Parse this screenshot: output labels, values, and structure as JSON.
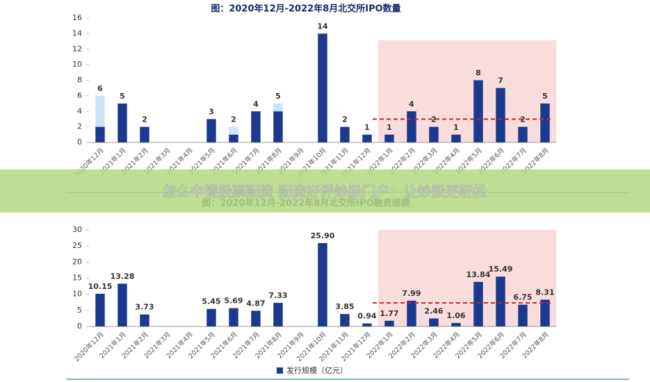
{
  "overlay": {
    "text": "怎么申请股票配资 配资好评炒股门户：让炒股更轻松"
  },
  "chart_data": [
    {
      "type": "bar",
      "title": "图：2020年12月-2022年8月北交所IPO数量",
      "categories": [
        "2020年12月",
        "2021年1月",
        "2021年2月",
        "2021年3月",
        "2021年4月",
        "2021年5月",
        "2021年6月",
        "2021年7月",
        "2021年8月",
        "2021年9月",
        "2021年10月",
        "2021年11月",
        "2021年12月",
        "2022年1月",
        "2022年2月",
        "2022年3月",
        "2022年4月",
        "2022年5月",
        "2022年6月",
        "2022年7月",
        "2022年8月"
      ],
      "series": [
        {
          "color": "#1a3a8f",
          "values": [
            2,
            5,
            2,
            null,
            null,
            3,
            1,
            4,
            4,
            null,
            14,
            2,
            1,
            1,
            4,
            2,
            1,
            8,
            7,
            2,
            5
          ]
        },
        {
          "color": "#c9e4f7",
          "values": [
            4,
            null,
            null,
            null,
            null,
            null,
            1,
            null,
            1,
            null,
            null,
            null,
            null,
            null,
            null,
            null,
            null,
            null,
            null,
            null,
            null
          ]
        }
      ],
      "totals": [
        6,
        5,
        2,
        null,
        null,
        3,
        2,
        4,
        5,
        null,
        14,
        2,
        1,
        1,
        4,
        2,
        1,
        8,
        7,
        2,
        5
      ],
      "ylim": [
        0,
        16
      ],
      "yticks": [
        0,
        2,
        4,
        6,
        8,
        10,
        12,
        14,
        16
      ],
      "reference_line": 3,
      "highlight_from": "2022年1月"
    },
    {
      "type": "bar",
      "title": "图：2020年12月-2022年8月北交所IPO融资规模",
      "categories": [
        "2020年12月",
        "2021年1月",
        "2021年2月",
        "2021年3月",
        "2021年4月",
        "2021年5月",
        "2021年6月",
        "2021年7月",
        "2021年8月",
        "2021年9月",
        "2021年10月",
        "2021年11月",
        "2021年12月",
        "2022年1月",
        "2022年2月",
        "2022年3月",
        "2022年4月",
        "2022年5月",
        "2022年6月",
        "2022年7月",
        "2022年8月"
      ],
      "series": [
        {
          "name": "发行规模（亿元）",
          "color": "#1a3a8f",
          "values": [
            10.15,
            13.28,
            3.73,
            null,
            null,
            5.45,
            5.69,
            4.87,
            7.33,
            null,
            25.9,
            3.85,
            0.94,
            1.77,
            7.99,
            2.46,
            1.06,
            13.84,
            15.49,
            6.75,
            8.31
          ]
        }
      ],
      "value_labels": [
        "10.15",
        "13.28",
        "3.73",
        null,
        null,
        "5.45",
        "5.69",
        "4.87",
        "7.33",
        null,
        "25.90",
        "3.85",
        "0.94",
        "1.77",
        "7.99",
        "2.46",
        "1.06",
        "13.84",
        "15.49",
        "6.75",
        "8.31"
      ],
      "ylim": [
        0,
        30
      ],
      "yticks": [
        0,
        5,
        10,
        15,
        20,
        25,
        30
      ],
      "reference_line": 7.3,
      "highlight_from": "2022年1月"
    }
  ]
}
